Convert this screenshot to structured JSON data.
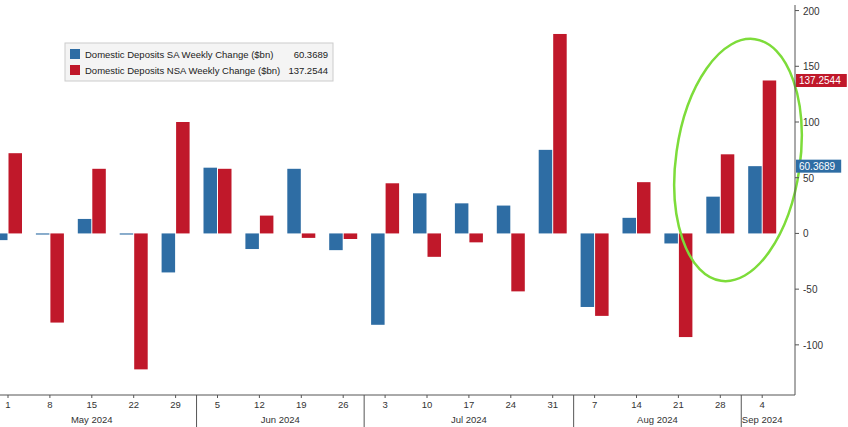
{
  "chart_data": {
    "type": "bar",
    "categories": [
      "1",
      "8",
      "15",
      "22",
      "29",
      "5",
      "12",
      "19",
      "26",
      "3",
      "10",
      "17",
      "24",
      "31",
      "7",
      "14",
      "21",
      "28",
      "4"
    ],
    "months": [
      {
        "label": "May 2024",
        "count": 5
      },
      {
        "label": "Jun 2024",
        "count": 4
      },
      {
        "label": "Jul 2024",
        "count": 5
      },
      {
        "label": "Aug 2024",
        "count": 4
      },
      {
        "label": "Sep 2024",
        "count": 1
      }
    ],
    "series": [
      {
        "name": "Domestic Deposits SA Weekly Change ($bn)",
        "color": "#2e6da4",
        "values": [
          -6,
          -1,
          13,
          -1,
          -35,
          59,
          -14,
          58,
          -15,
          -82,
          36,
          27,
          25,
          75,
          -66,
          14,
          -9,
          33,
          60.3689
        ]
      },
      {
        "name": "Domestic Deposits NSA Weekly Change ($bn)",
        "color": "#c0182a",
        "values": [
          72,
          -80,
          58,
          -122,
          100,
          58,
          16,
          -4,
          -5,
          45,
          -21,
          -8,
          -52,
          179,
          -74,
          46,
          -93,
          71,
          137.2544
        ]
      }
    ],
    "ylim": [
      -145,
      205
    ],
    "yticks": [
      -100,
      -50,
      0,
      50,
      100,
      150,
      200
    ],
    "grid": false,
    "legend": "top-left"
  }
}
